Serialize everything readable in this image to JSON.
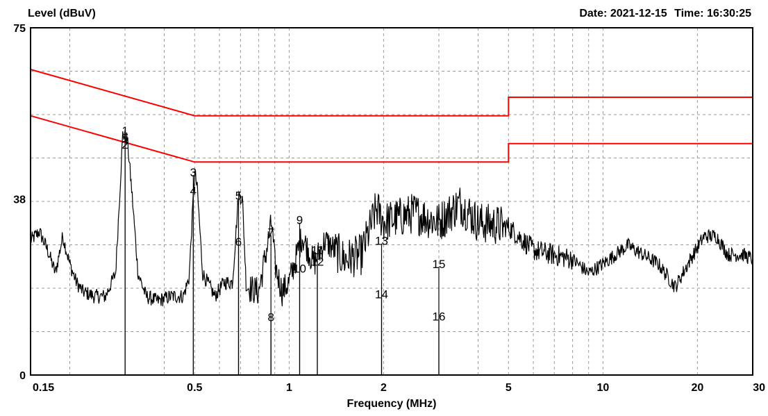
{
  "header": {
    "ylabel": "Level (dBuV)",
    "date_label": "Date:",
    "date": "2021-12-15",
    "time_label": "Time:",
    "time": "16:30:25"
  },
  "chart_data": {
    "type": "line",
    "xlabel": "Frequency (MHz)",
    "ylabel": "Level (dBuV)",
    "x_scale": "log",
    "xlim": [
      0.15,
      30
    ],
    "ylim": [
      0,
      75
    ],
    "x_ticks": [
      "0.15",
      "0.5",
      "1",
      "2",
      "5",
      "10",
      "20",
      "30"
    ],
    "x_tick_values": [
      0.15,
      0.5,
      1,
      2,
      5,
      10,
      20,
      30
    ],
    "y_ticks": [
      "0",
      "38",
      "75"
    ],
    "y_tick_values": [
      0,
      38,
      75
    ],
    "grid": true,
    "colors": {
      "limit": "#ff0000",
      "trace": "#000000",
      "grid": "#999999"
    },
    "limits": [
      {
        "points": [
          [
            0.15,
            66
          ],
          [
            0.5,
            56
          ],
          [
            5,
            56
          ],
          [
            5,
            60
          ],
          [
            30,
            60
          ]
        ]
      },
      {
        "points": [
          [
            0.15,
            56
          ],
          [
            0.5,
            46
          ],
          [
            5,
            46
          ],
          [
            5,
            50
          ],
          [
            30,
            50
          ]
        ]
      }
    ],
    "trace_anchors": [
      [
        0.15,
        29
      ],
      [
        0.16,
        31
      ],
      [
        0.17,
        27
      ],
      [
        0.18,
        22
      ],
      [
        0.19,
        30
      ],
      [
        0.2,
        24
      ],
      [
        0.21,
        20
      ],
      [
        0.22,
        18
      ],
      [
        0.24,
        17
      ],
      [
        0.26,
        17
      ],
      [
        0.28,
        22
      ],
      [
        0.29,
        42
      ],
      [
        0.295,
        52
      ],
      [
        0.305,
        51
      ],
      [
        0.315,
        40
      ],
      [
        0.33,
        22
      ],
      [
        0.35,
        17
      ],
      [
        0.38,
        16
      ],
      [
        0.42,
        17
      ],
      [
        0.46,
        17
      ],
      [
        0.48,
        21
      ],
      [
        0.5,
        44
      ],
      [
        0.51,
        40
      ],
      [
        0.53,
        22
      ],
      [
        0.58,
        17
      ],
      [
        0.62,
        20
      ],
      [
        0.66,
        20
      ],
      [
        0.69,
        39
      ],
      [
        0.71,
        38
      ],
      [
        0.73,
        19
      ],
      [
        0.8,
        18
      ],
      [
        0.88,
        33
      ],
      [
        0.9,
        24
      ],
      [
        0.95,
        18
      ],
      [
        1.0,
        20
      ],
      [
        1.1,
        30
      ],
      [
        1.2,
        24
      ],
      [
        1.3,
        29
      ],
      [
        1.5,
        25
      ],
      [
        1.7,
        26
      ],
      [
        1.9,
        36
      ],
      [
        2.0,
        33
      ],
      [
        2.5,
        35
      ],
      [
        3.0,
        33
      ],
      [
        3.5,
        37
      ],
      [
        4.0,
        33
      ],
      [
        5.0,
        32
      ],
      [
        6.0,
        27
      ],
      [
        8.0,
        25
      ],
      [
        9.0,
        22
      ],
      [
        10.0,
        24
      ],
      [
        12.0,
        28
      ],
      [
        15.0,
        24
      ],
      [
        17.0,
        19
      ],
      [
        19.0,
        25
      ],
      [
        21.0,
        30
      ],
      [
        23.0,
        30
      ],
      [
        25.0,
        26
      ],
      [
        28.0,
        26
      ],
      [
        30.0,
        25
      ]
    ],
    "markers": [
      {
        "label": "1",
        "freq": 0.3,
        "level": 52.8
      },
      {
        "label": "2",
        "freq": 0.3,
        "level": 49.8
      },
      {
        "label": "3",
        "freq": 0.495,
        "level": 43.8
      },
      {
        "label": "4",
        "freq": 0.495,
        "level": 39.8
      },
      {
        "label": "5",
        "freq": 0.69,
        "level": 38.8
      },
      {
        "label": "6",
        "freq": 0.69,
        "level": 28.8
      },
      {
        "label": "7",
        "freq": 0.875,
        "level": 30.8
      },
      {
        "label": "8",
        "freq": 0.875,
        "level": 12.5
      },
      {
        "label": "9",
        "freq": 1.08,
        "level": 33.5
      },
      {
        "label": "10",
        "freq": 1.08,
        "level": 23
      },
      {
        "label": "11",
        "freq": 1.23,
        "level": 27
      },
      {
        "label": "12",
        "freq": 1.23,
        "level": 24.5
      },
      {
        "label": "13",
        "freq": 1.97,
        "level": 29
      },
      {
        "label": "14",
        "freq": 1.97,
        "level": 17.5
      },
      {
        "label": "15",
        "freq": 3.0,
        "level": 24
      },
      {
        "label": "16",
        "freq": 3.0,
        "level": 12.7
      }
    ]
  }
}
